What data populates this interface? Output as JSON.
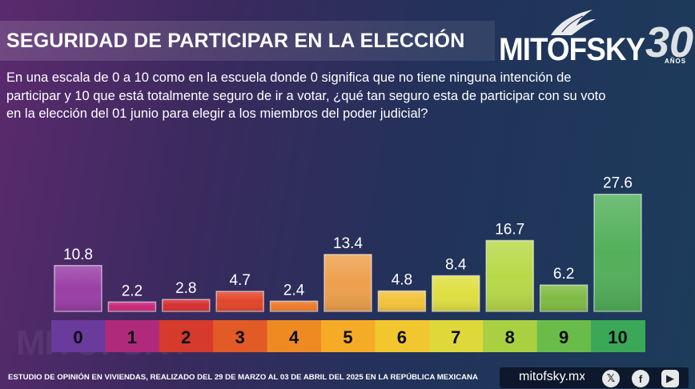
{
  "header": {
    "title": "SEGURIDAD DE PARTICIPAR EN LA ELECCIÓN",
    "question": "En una escala de 0 a 10 como en la escuela donde 0 significa que no tiene ninguna intención de participar y 10 que está totalmente seguro de ir a votar, ¿qué tan seguro esta de participar con su voto en la elección del 01 junio para elegir a los miembros del poder judicial?"
  },
  "logo": {
    "name": "MITOFSKY",
    "anniversary": "30",
    "anniversary_label": "AÑOS"
  },
  "watermark": "MITOFSKY",
  "chart_data": {
    "type": "bar",
    "title": "SEGURIDAD DE PARTICIPAR EN LA ELECCIÓN",
    "categories": [
      "0",
      "1",
      "2",
      "3",
      "4",
      "5",
      "6",
      "7",
      "8",
      "9",
      "10"
    ],
    "values": [
      10.8,
      2.2,
      2.8,
      4.7,
      2.4,
      13.4,
      4.8,
      8.4,
      16.7,
      6.2,
      27.6
    ],
    "value_labels": [
      "10.8",
      "2.2",
      "2.8",
      "4.7",
      "2.4",
      "13.4",
      "4.8",
      "8.4",
      "16.7",
      "6.2",
      "27.6"
    ],
    "colors": [
      "#9a3fa6",
      "#c8287a",
      "#d4302f",
      "#e2462a",
      "#ec7a2c",
      "#eea04d",
      "#f3c23c",
      "#dfdf42",
      "#b7d948",
      "#7fbb44",
      "#52b05a"
    ],
    "scale_colors": [
      "#6a3a9c",
      "#b02a7c",
      "#d63a2c",
      "#e25a26",
      "#ee8a22",
      "#f5ab26",
      "#f2c62e",
      "#dfd83a",
      "#a8d040",
      "#6abc4a",
      "#3aa857"
    ],
    "xlabel": "",
    "ylabel": "",
    "ylim": [
      0,
      28
    ],
    "grid": false,
    "legend": "none"
  },
  "footer": {
    "note": "ESTUDIO DE OPINIÓN EN VIVIENDAS, REALIZADO DEL 29 DE MARZO AL 03 DE ABRIL DEL 2025 EN LA REPÚBLICA MEXICANA",
    "site": "mitofsky.mx",
    "social": {
      "x": "𝕏",
      "facebook": "f",
      "youtube": "▶"
    }
  }
}
